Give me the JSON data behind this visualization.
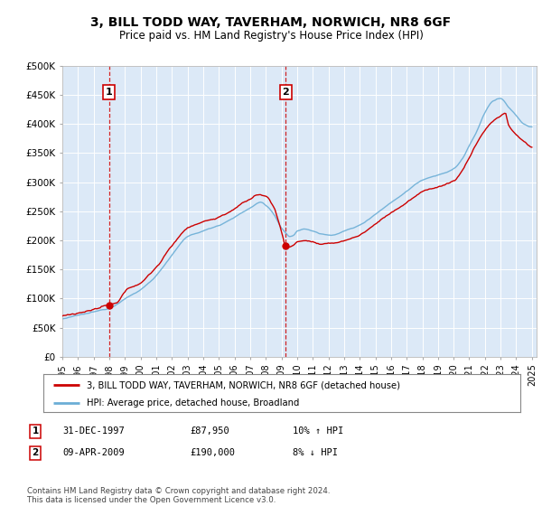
{
  "title": "3, BILL TODD WAY, TAVERHAM, NORWICH, NR8 6GF",
  "subtitle": "Price paid vs. HM Land Registry's House Price Index (HPI)",
  "background_color": "#dce9f7",
  "ylim": [
    0,
    500000
  ],
  "yticks": [
    0,
    50000,
    100000,
    150000,
    200000,
    250000,
    300000,
    350000,
    400000,
    450000,
    500000
  ],
  "ytick_labels": [
    "£0",
    "£50K",
    "£100K",
    "£150K",
    "£200K",
    "£250K",
    "£300K",
    "£350K",
    "£400K",
    "£450K",
    "£500K"
  ],
  "sale1_date": 1997.99,
  "sale1_price": 87950,
  "sale2_date": 2009.27,
  "sale2_price": 190000,
  "legend_line1": "3, BILL TODD WAY, TAVERHAM, NORWICH, NR8 6GF (detached house)",
  "legend_line2": "HPI: Average price, detached house, Broadland",
  "hpi_color": "#6baed6",
  "price_color": "#cc0000"
}
